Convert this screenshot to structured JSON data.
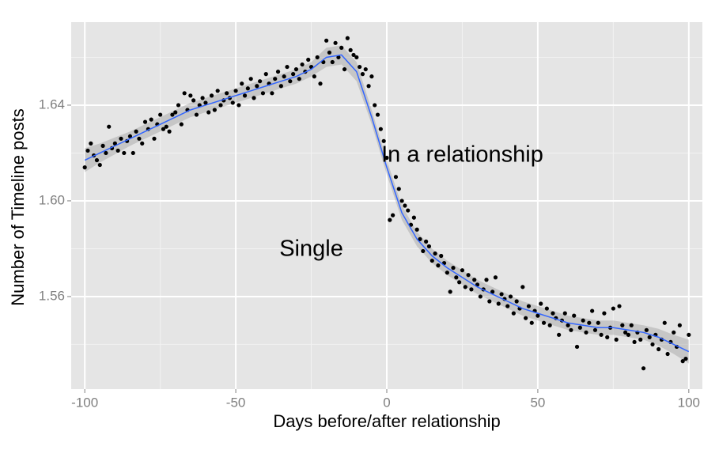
{
  "chart_data": {
    "type": "scatter",
    "x_label": "Days before/after relationship",
    "y_label": "Number of Timeline posts",
    "annotations": [
      {
        "text": "Single",
        "x": -25,
        "y": 1.5795
      },
      {
        "text": "In a relationship",
        "x": 25,
        "y": 1.6188
      }
    ],
    "xlim": [
      -104.5,
      104.5
    ],
    "ylim": [
      1.5213,
      1.6747
    ],
    "xticks": [
      -100,
      -50,
      0,
      50,
      100
    ],
    "yticks": [
      {
        "value": 1.56,
        "label": "1.56"
      },
      {
        "value": 1.6,
        "label": "1.60"
      },
      {
        "value": 1.64,
        "label": "1.64"
      }
    ],
    "xminor": [
      -75,
      -25,
      25,
      75
    ],
    "yminor": [
      1.54,
      1.58,
      1.62,
      1.66
    ],
    "grid": true,
    "points": {
      "color": "#000000",
      "x": [
        -100,
        -99,
        -98,
        -97,
        -96,
        -95,
        -94,
        -93,
        -92,
        -91,
        -90,
        -89,
        -88,
        -87,
        -86,
        -85,
        -84,
        -83,
        -82,
        -81,
        -80,
        -79,
        -78,
        -77,
        -76,
        -75,
        -74,
        -73,
        -72,
        -71,
        -70,
        -69,
        -68,
        -67,
        -66,
        -65,
        -64,
        -63,
        -62,
        -61,
        -60,
        -59,
        -58,
        -57,
        -56,
        -55,
        -54,
        -53,
        -52,
        -51,
        -50,
        -49,
        -48,
        -47,
        -46,
        -45,
        -44,
        -43,
        -42,
        -41,
        -40,
        -39,
        -38,
        -37,
        -36,
        -35,
        -34,
        -33,
        -32,
        -31,
        -30,
        -29,
        -28,
        -27,
        -26,
        -25,
        -24,
        -23,
        -22,
        -21,
        -20,
        -19,
        -18,
        -17,
        -16,
        -15,
        -14,
        -13,
        -12,
        -11,
        -10,
        -9,
        -8,
        -7,
        -6,
        -5,
        -4,
        -3,
        -2,
        -1,
        0,
        1,
        2,
        3,
        4,
        5,
        6,
        7,
        8,
        9,
        10,
        11,
        12,
        13,
        14,
        15,
        16,
        17,
        18,
        19,
        20,
        21,
        22,
        23,
        24,
        25,
        26,
        27,
        28,
        29,
        30,
        31,
        32,
        33,
        34,
        35,
        36,
        37,
        38,
        39,
        40,
        41,
        42,
        43,
        44,
        45,
        46,
        47,
        48,
        49,
        50,
        51,
        52,
        53,
        54,
        55,
        56,
        57,
        58,
        59,
        60,
        61,
        62,
        63,
        64,
        65,
        66,
        67,
        68,
        69,
        70,
        71,
        72,
        73,
        74,
        75,
        76,
        77,
        78,
        79,
        80,
        81,
        82,
        83,
        84,
        85,
        86,
        87,
        88,
        89,
        90,
        91,
        92,
        93,
        94,
        95,
        96,
        97,
        98,
        99,
        100
      ],
      "values": [
        1.614,
        1.621,
        1.624,
        1.619,
        1.617,
        1.615,
        1.623,
        1.62,
        1.631,
        1.622,
        1.624,
        1.621,
        1.626,
        1.62,
        1.625,
        1.627,
        1.62,
        1.629,
        1.626,
        1.624,
        1.633,
        1.63,
        1.634,
        1.626,
        1.632,
        1.636,
        1.63,
        1.631,
        1.629,
        1.636,
        1.637,
        1.64,
        1.632,
        1.645,
        1.638,
        1.644,
        1.642,
        1.636,
        1.64,
        1.643,
        1.641,
        1.637,
        1.644,
        1.638,
        1.646,
        1.64,
        1.642,
        1.645,
        1.643,
        1.641,
        1.646,
        1.64,
        1.649,
        1.644,
        1.647,
        1.651,
        1.643,
        1.648,
        1.65,
        1.645,
        1.653,
        1.649,
        1.645,
        1.651,
        1.654,
        1.648,
        1.652,
        1.656,
        1.65,
        1.653,
        1.655,
        1.651,
        1.657,
        1.654,
        1.659,
        1.656,
        1.652,
        1.66,
        1.649,
        1.658,
        1.667,
        1.662,
        1.658,
        1.666,
        1.66,
        1.664,
        1.655,
        1.668,
        1.663,
        1.661,
        1.66,
        1.656,
        1.653,
        1.655,
        1.648,
        1.652,
        1.64,
        1.636,
        1.63,
        1.625,
        1.618,
        1.592,
        1.594,
        1.61,
        1.605,
        1.6,
        1.598,
        1.596,
        1.59,
        1.593,
        1.588,
        1.584,
        1.579,
        1.583,
        1.581,
        1.575,
        1.578,
        1.573,
        1.577,
        1.574,
        1.57,
        1.562,
        1.572,
        1.568,
        1.566,
        1.571,
        1.564,
        1.569,
        1.563,
        1.567,
        1.565,
        1.56,
        1.563,
        1.567,
        1.558,
        1.562,
        1.568,
        1.557,
        1.561,
        1.559,
        1.556,
        1.56,
        1.553,
        1.558,
        1.555,
        1.564,
        1.551,
        1.556,
        1.549,
        1.554,
        1.552,
        1.557,
        1.549,
        1.555,
        1.548,
        1.553,
        1.551,
        1.544,
        1.55,
        1.553,
        1.548,
        1.546,
        1.552,
        1.539,
        1.547,
        1.55,
        1.545,
        1.549,
        1.554,
        1.546,
        1.549,
        1.544,
        1.553,
        1.543,
        1.547,
        1.555,
        1.542,
        1.556,
        1.548,
        1.545,
        1.544,
        1.548,
        1.541,
        1.545,
        1.542,
        1.53,
        1.546,
        1.543,
        1.54,
        1.544,
        1.538,
        1.542,
        1.549,
        1.536,
        1.541,
        1.545,
        1.539,
        1.548,
        1.533,
        1.534,
        1.544
      ]
    },
    "smooth": {
      "color": "#3366ff",
      "band_color": "#999999",
      "x": [
        -100,
        -95,
        -90,
        -85,
        -80,
        -75,
        -70,
        -65,
        -60,
        -55,
        -50,
        -45,
        -40,
        -35,
        -30,
        -25,
        -20,
        -15,
        -10,
        -5,
        0,
        5,
        10,
        15,
        20,
        25,
        30,
        35,
        40,
        45,
        50,
        55,
        60,
        65,
        70,
        75,
        80,
        85,
        90,
        95,
        100
      ],
      "values": [
        1.617,
        1.62,
        1.623,
        1.626,
        1.629,
        1.632,
        1.635,
        1.638,
        1.64,
        1.642,
        1.644,
        1.646,
        1.648,
        1.65,
        1.652,
        1.655,
        1.66,
        1.661,
        1.654,
        1.635,
        1.614,
        1.595,
        1.584,
        1.577,
        1.572,
        1.568,
        1.564,
        1.561,
        1.558,
        1.555,
        1.553,
        1.551,
        1.549,
        1.548,
        1.547,
        1.547,
        1.546,
        1.545,
        1.543,
        1.54,
        1.537
      ],
      "lower": [
        1.612,
        1.616,
        1.6195,
        1.623,
        1.626,
        1.629,
        1.632,
        1.635,
        1.637,
        1.639,
        1.641,
        1.643,
        1.645,
        1.647,
        1.649,
        1.652,
        1.656,
        1.657,
        1.65,
        1.632,
        1.611,
        1.592,
        1.581,
        1.574,
        1.569,
        1.565,
        1.561,
        1.558,
        1.555,
        1.552,
        1.55,
        1.548,
        1.546,
        1.545,
        1.544,
        1.544,
        1.543,
        1.542,
        1.5395,
        1.536,
        1.532
      ],
      "upper": [
        1.622,
        1.624,
        1.6265,
        1.629,
        1.632,
        1.635,
        1.638,
        1.641,
        1.643,
        1.645,
        1.647,
        1.649,
        1.651,
        1.653,
        1.655,
        1.658,
        1.664,
        1.665,
        1.658,
        1.638,
        1.617,
        1.598,
        1.587,
        1.58,
        1.575,
        1.571,
        1.567,
        1.564,
        1.561,
        1.558,
        1.556,
        1.554,
        1.552,
        1.551,
        1.55,
        1.55,
        1.549,
        1.548,
        1.5465,
        1.544,
        1.542
      ]
    }
  }
}
